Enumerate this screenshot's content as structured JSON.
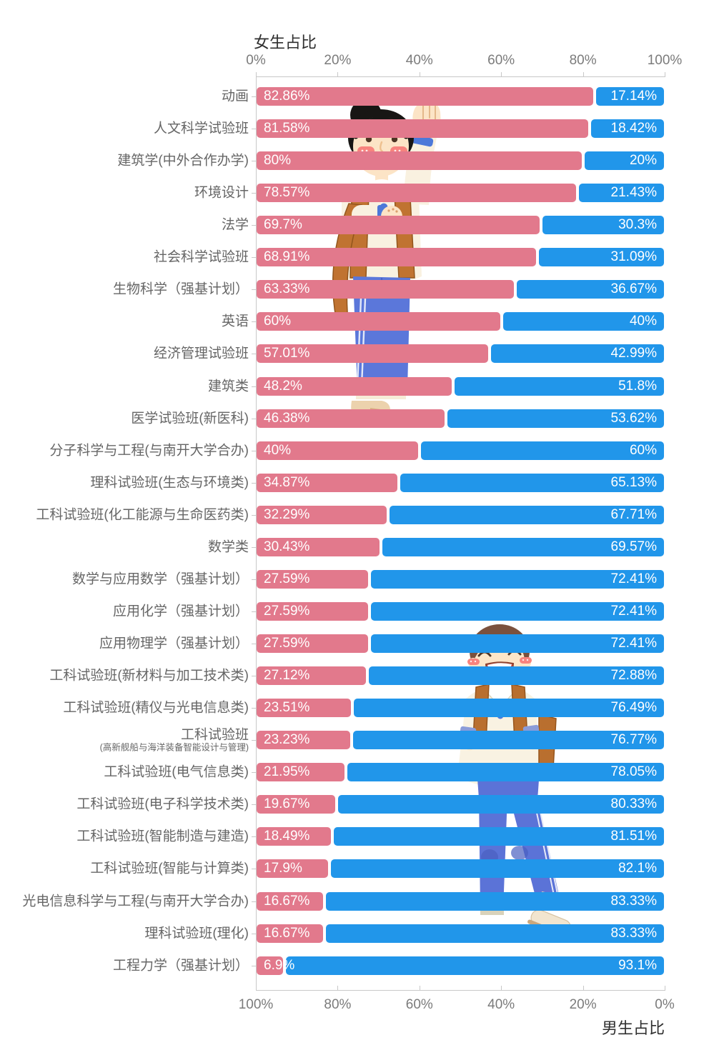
{
  "axes": {
    "top": {
      "title": "女生占比",
      "ticks": [
        "0%",
        "20%",
        "40%",
        "60%",
        "80%",
        "100%"
      ]
    },
    "bottom": {
      "title": "男生占比",
      "ticks": [
        "100%",
        "80%",
        "60%",
        "40%",
        "20%",
        "0%"
      ]
    }
  },
  "colors": {
    "female": "#e2798c",
    "male": "#2196ea",
    "axis_line": "#c8c8c8",
    "tick_text": "#7b7b7b",
    "label_text": "#666666",
    "title_text": "#2f2f2f",
    "bar_label": "#ffffff"
  },
  "icons": {
    "girl": "girl-student-illustration",
    "boy": "boy-student-illustration"
  },
  "chart_data": {
    "type": "bar",
    "orientation": "horizontal",
    "stacked": true,
    "x_range_percent": [
      0,
      100
    ],
    "series_names": [
      "女生占比",
      "男生占比"
    ],
    "rows": [
      {
        "category": "动画",
        "female": 82.86,
        "male": 17.14,
        "female_label": "82.86%",
        "male_label": "17.14%"
      },
      {
        "category": "人文科学试验班",
        "female": 81.58,
        "male": 18.42,
        "female_label": "81.58%",
        "male_label": "18.42%"
      },
      {
        "category": "建筑学(中外合作办学)",
        "female": 80,
        "male": 20,
        "female_label": "80%",
        "male_label": "20%"
      },
      {
        "category": "环境设计",
        "female": 78.57,
        "male": 21.43,
        "female_label": "78.57%",
        "male_label": "21.43%"
      },
      {
        "category": "法学",
        "female": 69.7,
        "male": 30.3,
        "female_label": "69.7%",
        "male_label": "30.3%"
      },
      {
        "category": "社会科学试验班",
        "female": 68.91,
        "male": 31.09,
        "female_label": "68.91%",
        "male_label": "31.09%"
      },
      {
        "category": "生物科学（强基计划）",
        "female": 63.33,
        "male": 36.67,
        "female_label": "63.33%",
        "male_label": "36.67%"
      },
      {
        "category": "英语",
        "female": 60,
        "male": 40,
        "female_label": "60%",
        "male_label": "40%"
      },
      {
        "category": "经济管理试验班",
        "female": 57.01,
        "male": 42.99,
        "female_label": "57.01%",
        "male_label": "42.99%"
      },
      {
        "category": "建筑类",
        "female": 48.2,
        "male": 51.8,
        "female_label": "48.2%",
        "male_label": "51.8%"
      },
      {
        "category": "医学试验班(新医科)",
        "female": 46.38,
        "male": 53.62,
        "female_label": "46.38%",
        "male_label": "53.62%"
      },
      {
        "category": "分子科学与工程(与南开大学合办)",
        "female": 40,
        "male": 60,
        "female_label": "40%",
        "male_label": "60%"
      },
      {
        "category": "理科试验班(生态与环境类)",
        "female": 34.87,
        "male": 65.13,
        "female_label": "34.87%",
        "male_label": "65.13%"
      },
      {
        "category": "工科试验班(化工能源与生命医药类)",
        "female": 32.29,
        "male": 67.71,
        "female_label": "32.29%",
        "male_label": "67.71%"
      },
      {
        "category": "数学类",
        "female": 30.43,
        "male": 69.57,
        "female_label": "30.43%",
        "male_label": "69.57%"
      },
      {
        "category": "数学与应用数学（强基计划）",
        "female": 27.59,
        "male": 72.41,
        "female_label": "27.59%",
        "male_label": "72.41%"
      },
      {
        "category": "应用化学（强基计划）",
        "female": 27.59,
        "male": 72.41,
        "female_label": "27.59%",
        "male_label": "72.41%"
      },
      {
        "category": "应用物理学（强基计划）",
        "female": 27.59,
        "male": 72.41,
        "female_label": "27.59%",
        "male_label": "72.41%"
      },
      {
        "category": "工科试验班(新材料与加工技术类)",
        "female": 27.12,
        "male": 72.88,
        "female_label": "27.12%",
        "male_label": "72.88%"
      },
      {
        "category": "工科试验班(精仪与光电信息类)",
        "female": 23.51,
        "male": 76.49,
        "female_label": "23.51%",
        "male_label": "76.49%"
      },
      {
        "category": "工科试验班",
        "category_line2": "(高新舰船与海洋装备智能设计与管理)",
        "female": 23.23,
        "male": 76.77,
        "female_label": "23.23%",
        "male_label": "76.77%"
      },
      {
        "category": "工科试验班(电气信息类)",
        "female": 21.95,
        "male": 78.05,
        "female_label": "21.95%",
        "male_label": "78.05%"
      },
      {
        "category": "工科试验班(电子科学技术类)",
        "female": 19.67,
        "male": 80.33,
        "female_label": "19.67%",
        "male_label": "80.33%"
      },
      {
        "category": "工科试验班(智能制造与建造)",
        "female": 18.49,
        "male": 81.51,
        "female_label": "18.49%",
        "male_label": "81.51%"
      },
      {
        "category": "工科试验班(智能与计算类)",
        "female": 17.9,
        "male": 82.1,
        "female_label": "17.9%",
        "male_label": "82.1%"
      },
      {
        "category": "光电信息科学与工程(与南开大学合办)",
        "female": 16.67,
        "male": 83.33,
        "female_label": "16.67%",
        "male_label": "83.33%"
      },
      {
        "category": "理科试验班(理化)",
        "female": 16.67,
        "male": 83.33,
        "female_label": "16.67%",
        "male_label": "83.33%"
      },
      {
        "category": "工程力学（强基计划）",
        "female": 6.9,
        "male": 93.1,
        "female_label": "6.9%",
        "male_label": "93.1%"
      }
    ]
  }
}
